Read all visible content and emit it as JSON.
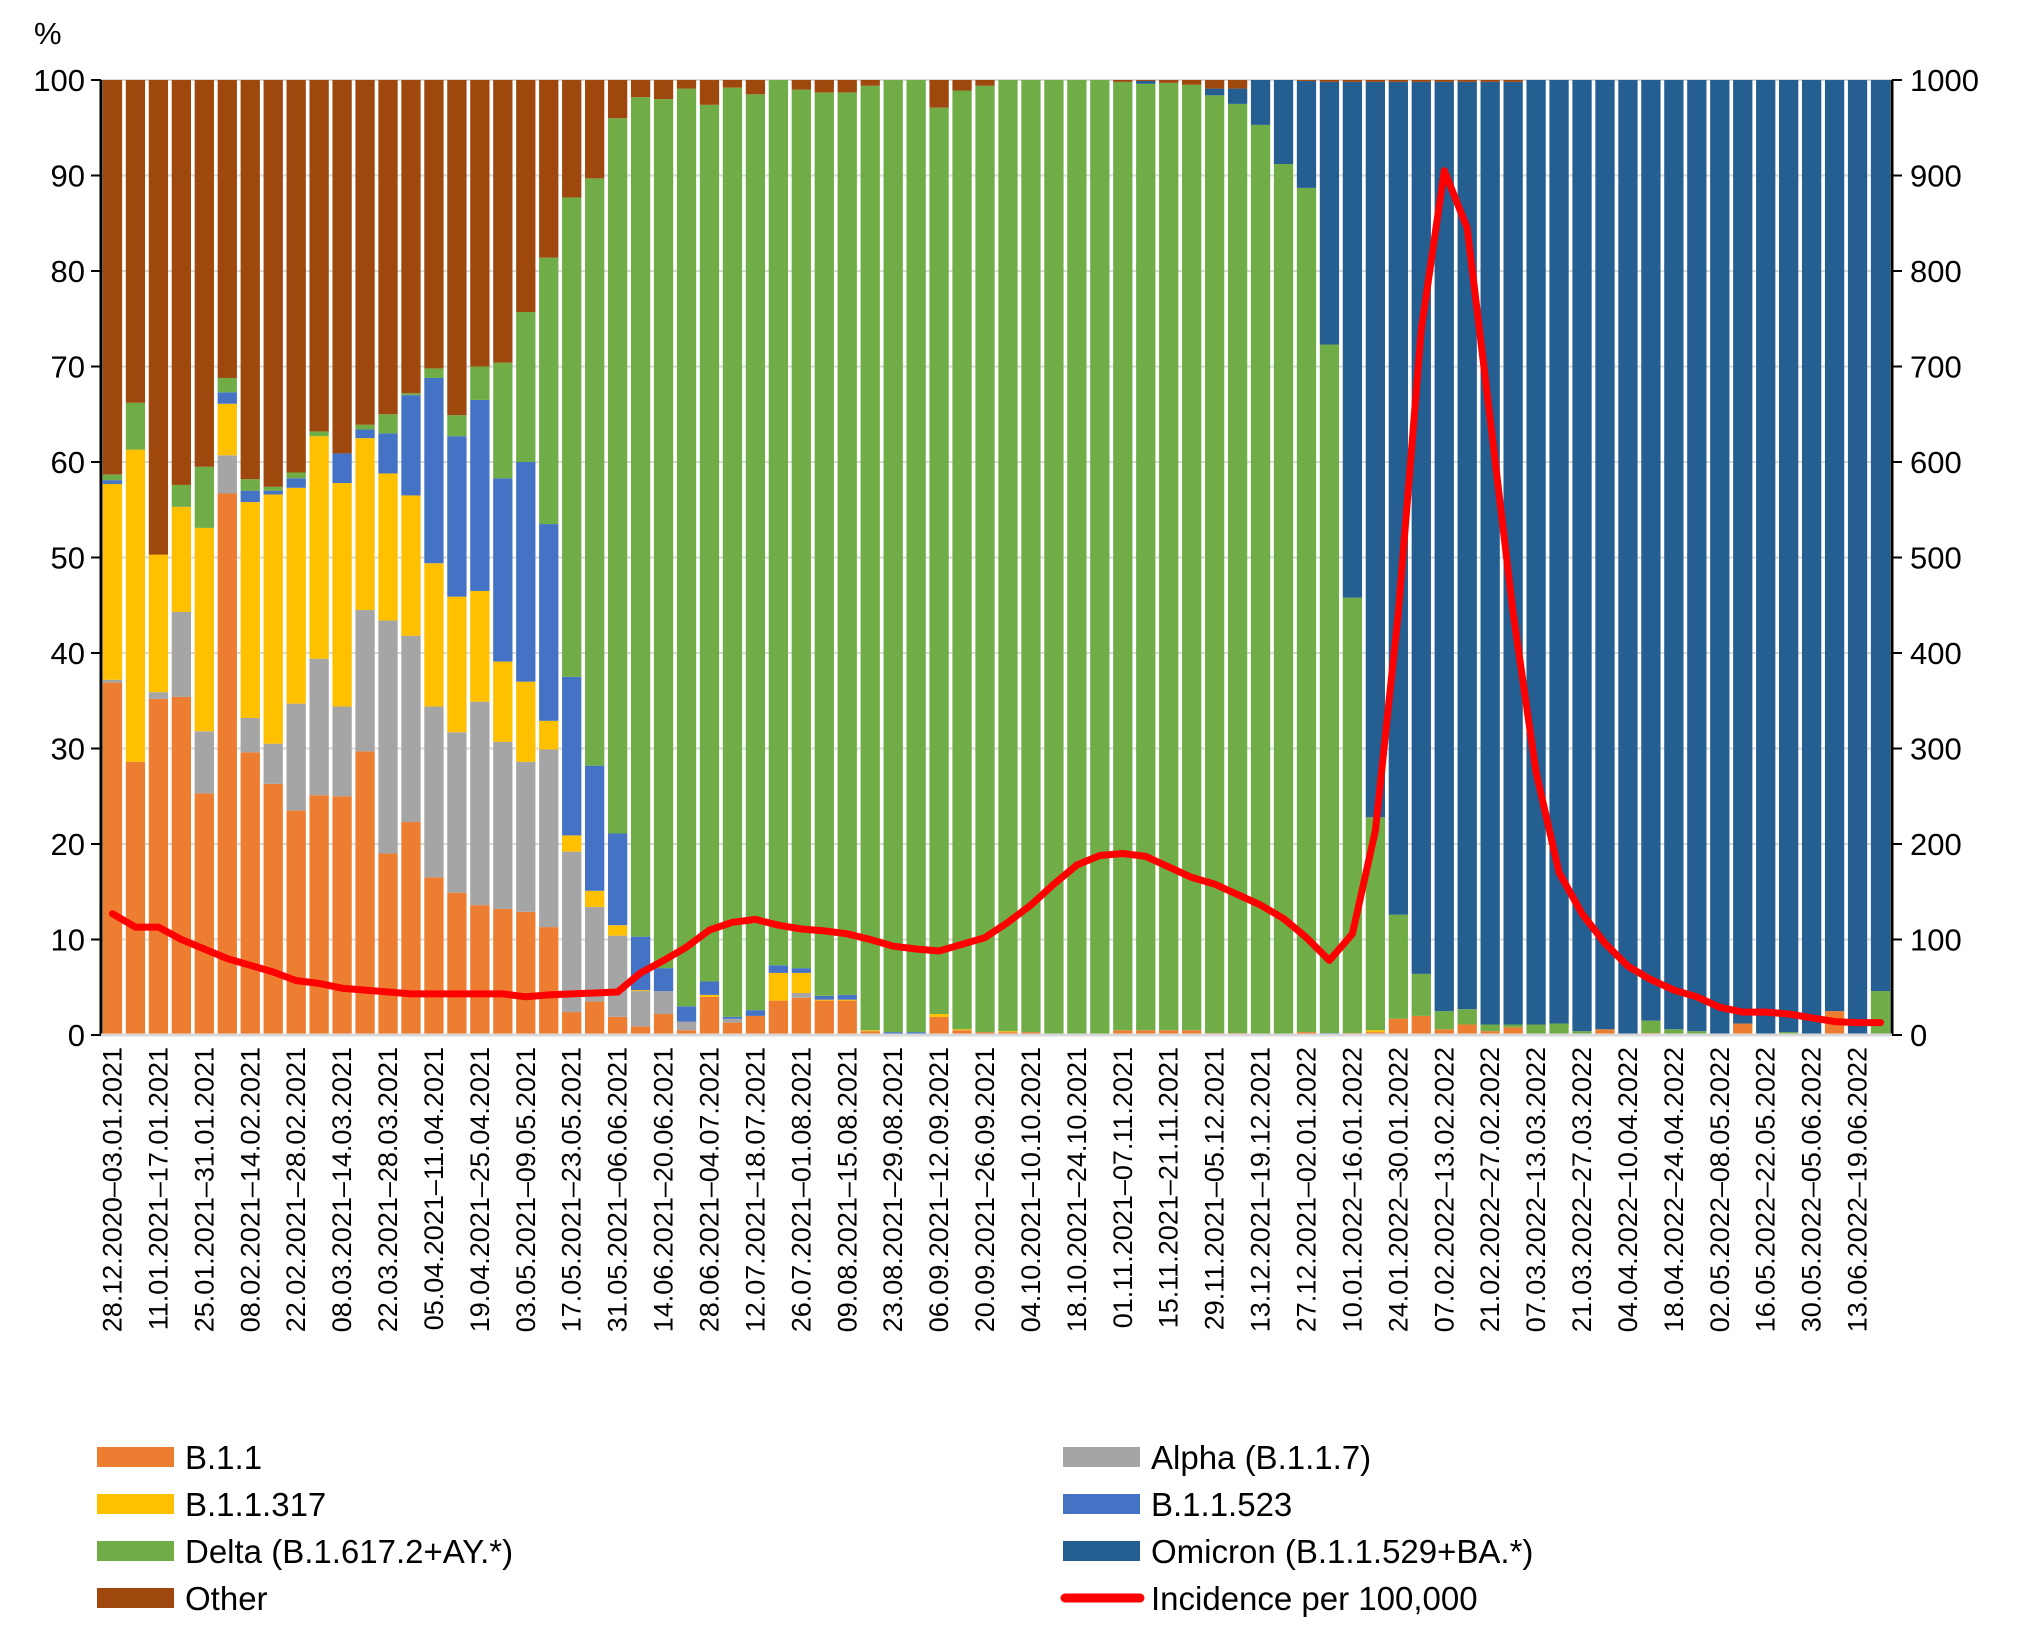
{
  "chart_data": {
    "type": "bar",
    "stacked": true,
    "ylabel": "%",
    "ylim": [
      0,
      100
    ],
    "y_ticks": [
      "0",
      "10",
      "20",
      "30",
      "40",
      "50",
      "60",
      "70",
      "80",
      "90",
      "100"
    ],
    "y2lim": [
      0,
      1000
    ],
    "y2_ticks": [
      "0",
      "100",
      "200",
      "300",
      "400",
      "500",
      "600",
      "700",
      "800",
      "900",
      "1000"
    ],
    "grid": true,
    "legend_placement": "bottom",
    "x_tick_labels": [
      "28.12.2020–03.01.2021",
      "11.01.2021–17.01.2021",
      "25.01.2021–31.01.2021",
      "08.02.2021–14.02.2021",
      "22.02.2021–28.02.2021",
      "08.03.2021–14.03.2021",
      "22.03.2021–28.03.2021",
      "05.04.2021–11.04.2021",
      "19.04.2021–25.04.2021",
      "03.05.2021–09.05.2021",
      "17.05.2021–23.05.2021",
      "31.05.2021–06.06.2021",
      "14.06.2021–20.06.2021",
      "28.06.2021–04.07.2021",
      "12.07.2021–18.07.2021",
      "26.07.2021–01.08.2021",
      "09.08.2021–15.08.2021",
      "23.08.2021–29.08.2021",
      "06.09.2021–12.09.2021",
      "20.09.2021–26.09.2021",
      "04.10.2021–10.10.2021",
      "18.10.2021–24.10.2021",
      "01.11.2021–07.11.2021",
      "15.11.2021–21.11.2021",
      "29.11.2021–05.12.2021",
      "13.12.2021–19.12.2021",
      "27.12.2021–02.01.2022",
      "10.01.2022–16.01.2022",
      "24.01.2022–30.01.2022",
      "07.02.2022–13.02.2022",
      "21.02.2022–27.02.2022",
      "07.03.2022–13.03.2022",
      "21.03.2022–27.03.2022",
      "04.04.2022–10.04.2022",
      "18.04.2022–24.04.2022",
      "02.05.2022–08.05.2022",
      "16.05.2022–22.05.2022",
      "30.05.2022–05.06.2022",
      "13.06.2022–19.06.2022"
    ],
    "x_tick_every": 2,
    "bar_count": 78,
    "series": [
      {
        "name": "B.1.1",
        "color": "#ED7D31",
        "values": [
          36.9,
          28.6,
          35.2,
          35.4,
          25.3,
          56.7,
          29.6,
          26.3,
          23.5,
          25.1,
          25.0,
          29.7,
          19.0,
          22.3,
          16.5,
          14.9,
          13.6,
          13.2,
          12.9,
          11.3,
          2.4,
          3.5,
          1.9,
          0.9,
          2.2,
          0.5,
          4.0,
          1.3,
          2.0,
          3.6,
          3.9,
          3.6,
          3.6,
          0.4,
          0,
          0,
          1.9,
          0.5,
          0.3,
          0.3,
          0.3,
          0,
          0,
          0.1,
          0.5,
          0.5,
          0.5,
          0.5,
          0.2,
          0.2,
          0,
          0,
          0.3,
          0,
          0.2,
          0.3,
          1.7,
          2.0,
          0.6,
          1.1,
          0.4,
          0.8,
          0,
          0,
          0,
          0.6,
          0,
          0.2,
          0,
          0,
          0,
          1.2,
          0,
          0,
          0,
          2.5,
          0,
          0
        ]
      },
      {
        "name": "Alpha (B.1.1.7)",
        "color": "#A5A5A5",
        "values": [
          0.3,
          0,
          0.7,
          8.9,
          6.5,
          4.0,
          3.6,
          4.2,
          11.2,
          14.3,
          9.4,
          14.8,
          24.4,
          19.5,
          17.9,
          16.8,
          21.3,
          17.5,
          15.7,
          18.6,
          16.8,
          9.9,
          8.5,
          3.7,
          2.4,
          0.9,
          0,
          0.4,
          0,
          0,
          0.5,
          0,
          0,
          0,
          0,
          0,
          0,
          0,
          0,
          0,
          0,
          0,
          0,
          0,
          0,
          0,
          0,
          0,
          0,
          0,
          0,
          0,
          0,
          0,
          0,
          0,
          0,
          0,
          0,
          0,
          0,
          0,
          0,
          0,
          0,
          0,
          0,
          0,
          0,
          0,
          0,
          0,
          0,
          0,
          0,
          0,
          0,
          0
        ]
      },
      {
        "name": "B.1.1.317",
        "color": "#FFC000",
        "values": [
          20.5,
          32.7,
          14.4,
          11.0,
          21.3,
          5.4,
          22.6,
          26.1,
          22.6,
          23.3,
          23.4,
          18.0,
          15.4,
          14.7,
          15.0,
          14.2,
          11.6,
          8.4,
          8.4,
          3.0,
          1.7,
          1.7,
          1.1,
          0.1,
          0,
          0,
          0.2,
          0,
          0,
          2.9,
          2.1,
          0.1,
          0.1,
          0.1,
          0,
          0,
          0.3,
          0.1,
          0,
          0.1,
          0,
          0,
          0,
          0,
          0,
          0,
          0,
          0,
          0,
          0,
          0,
          0,
          0,
          0,
          0,
          0.2,
          0,
          0,
          0,
          0,
          0,
          0,
          0,
          0,
          0,
          0,
          0,
          0,
          0,
          0,
          0,
          0,
          0,
          0,
          0,
          0,
          0,
          0
        ]
      },
      {
        "name": "B.1.1.523",
        "color": "#4472C4",
        "values": [
          0.4,
          0,
          0,
          0,
          0,
          1.2,
          1.2,
          0.4,
          1.0,
          0,
          3.1,
          0.9,
          4.2,
          10.5,
          19.4,
          16.8,
          20.0,
          19.2,
          23.0,
          20.6,
          16.6,
          13.1,
          9.6,
          5.6,
          2.4,
          1.6,
          1.4,
          0.2,
          0.6,
          0.8,
          0.5,
          0.4,
          0.5,
          0,
          0.3,
          0.3,
          0,
          0,
          0,
          0,
          0,
          0,
          0,
          0,
          0,
          0,
          0,
          0,
          0,
          0,
          0,
          0,
          0,
          0.2,
          0,
          0,
          0,
          0,
          0,
          0,
          0,
          0,
          0,
          0,
          0,
          0,
          0,
          0,
          0,
          0,
          0,
          0,
          0,
          0,
          0,
          0,
          0,
          0
        ]
      },
      {
        "name": "Delta (B.1.617.2+AY.*)",
        "color": "#70AD47",
        "values": [
          0.6,
          4.9,
          0,
          2.3,
          6.4,
          1.5,
          1.2,
          0.4,
          0.6,
          0.5,
          0,
          0.5,
          2.0,
          0.2,
          1.0,
          2.2,
          3.5,
          12.1,
          15.7,
          27.9,
          50.2,
          61.5,
          74.9,
          87.9,
          91.0,
          96.1,
          91.8,
          97.3,
          95.9,
          92.7,
          92.0,
          94.6,
          94.5,
          98.9,
          99.7,
          99.7,
          94.9,
          98.3,
          99.1,
          99.6,
          99.7,
          100,
          100,
          99.9,
          99.3,
          99.1,
          99.2,
          99.0,
          98.2,
          97.3,
          95.3,
          91.2,
          88.4,
          72.1,
          45.6,
          22.3,
          10.9,
          4.4,
          1.9,
          1.6,
          0.7,
          0.3,
          1.1,
          1.2,
          0.4,
          0,
          0,
          1.3,
          0.6,
          0.4,
          0,
          0,
          0,
          0.3,
          0,
          0,
          0,
          4.6
        ]
      },
      {
        "name": "Omicron (B.1.1.529+BA.*)",
        "color": "#255E91",
        "values": [
          0,
          0,
          0,
          0,
          0,
          0,
          0,
          0,
          0,
          0,
          0,
          0,
          0,
          0,
          0,
          0,
          0,
          0,
          0,
          0,
          0,
          0,
          0,
          0,
          0,
          0,
          0,
          0,
          0,
          0,
          0,
          0,
          0,
          0,
          0,
          0,
          0,
          0,
          0,
          0,
          0,
          0,
          0,
          0,
          0,
          0.3,
          0,
          0,
          0.7,
          1.6,
          4.7,
          8.8,
          11.2,
          27.5,
          54.0,
          77.0,
          87.2,
          93.4,
          97.3,
          97.1,
          98.7,
          98.7,
          98.9,
          98.8,
          99.6,
          99.4,
          100,
          98.5,
          99.4,
          99.6,
          100,
          98.8,
          100,
          99.7,
          100,
          97.5,
          100,
          95.4
        ]
      },
      {
        "name": "Other",
        "color": "#9E480E",
        "values": [
          41.3,
          33.8,
          49.7,
          42.4,
          40.5,
          31.2,
          41.8,
          42.6,
          41.1,
          36.8,
          39.1,
          36.1,
          35.0,
          32.8,
          30.2,
          35.1,
          30.0,
          29.6,
          24.3,
          18.6,
          12.3,
          10.3,
          4.0,
          1.8,
          2.0,
          0.9,
          2.6,
          0.8,
          1.5,
          0,
          1.0,
          1.3,
          1.3,
          0.6,
          0,
          0,
          2.9,
          1.1,
          0.6,
          0,
          0,
          0,
          0,
          0,
          0.2,
          0.1,
          0.3,
          0.5,
          0.9,
          0.9,
          0,
          0,
          0.1,
          0.2,
          0.2,
          0.2,
          0.2,
          0.2,
          0.2,
          0.2,
          0.2,
          0.2,
          0,
          0,
          0,
          0,
          0,
          0,
          0,
          0,
          0,
          0,
          0,
          0,
          0,
          0,
          0,
          0
        ]
      }
    ],
    "line": {
      "name": "Incidence per 100,000",
      "axis": "right",
      "color": "#FF0000",
      "values": [
        127,
        113,
        113,
        100,
        90,
        80,
        73,
        66,
        57,
        54,
        49,
        47,
        45,
        43,
        43,
        43,
        43,
        43,
        40,
        42,
        43,
        44,
        45,
        65,
        78,
        92,
        110,
        118,
        121,
        115,
        111,
        109,
        106,
        100,
        93,
        90,
        88,
        95,
        102,
        118,
        136,
        158,
        178,
        188,
        190,
        187,
        176,
        165,
        158,
        147,
        136,
        122,
        102,
        78,
        106,
        214,
        442,
        739,
        905,
        845,
        645,
        442,
        275,
        170,
        127,
        96,
        72,
        58,
        47,
        40,
        29,
        24,
        24,
        22,
        18,
        14,
        13,
        13
      ]
    }
  }
}
